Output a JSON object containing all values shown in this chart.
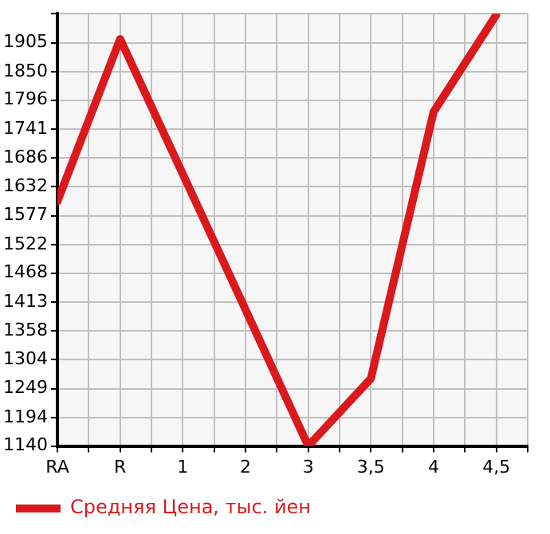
{
  "chart_data": {
    "type": "line",
    "categories": [
      "RA",
      "R",
      "1",
      "2",
      "3",
      "3,5",
      "4",
      "4,5"
    ],
    "series": [
      {
        "name": "Средняя Цена, тыс. йен",
        "color": "#d9191c",
        "values": [
          1604,
          1912,
          1656,
          1399,
          1140,
          1268,
          1774,
          1958
        ]
      }
    ],
    "ylim": [
      1140,
      1960
    ],
    "yticks": [
      1140,
      1194,
      1249,
      1304,
      1358,
      1413,
      1468,
      1522,
      1577,
      1632,
      1686,
      1741,
      1796,
      1850,
      1905,
      {
        "value": 1960,
        "label": null
      }
    ],
    "grid": true,
    "legend": "bottom left",
    "marker": "none"
  }
}
